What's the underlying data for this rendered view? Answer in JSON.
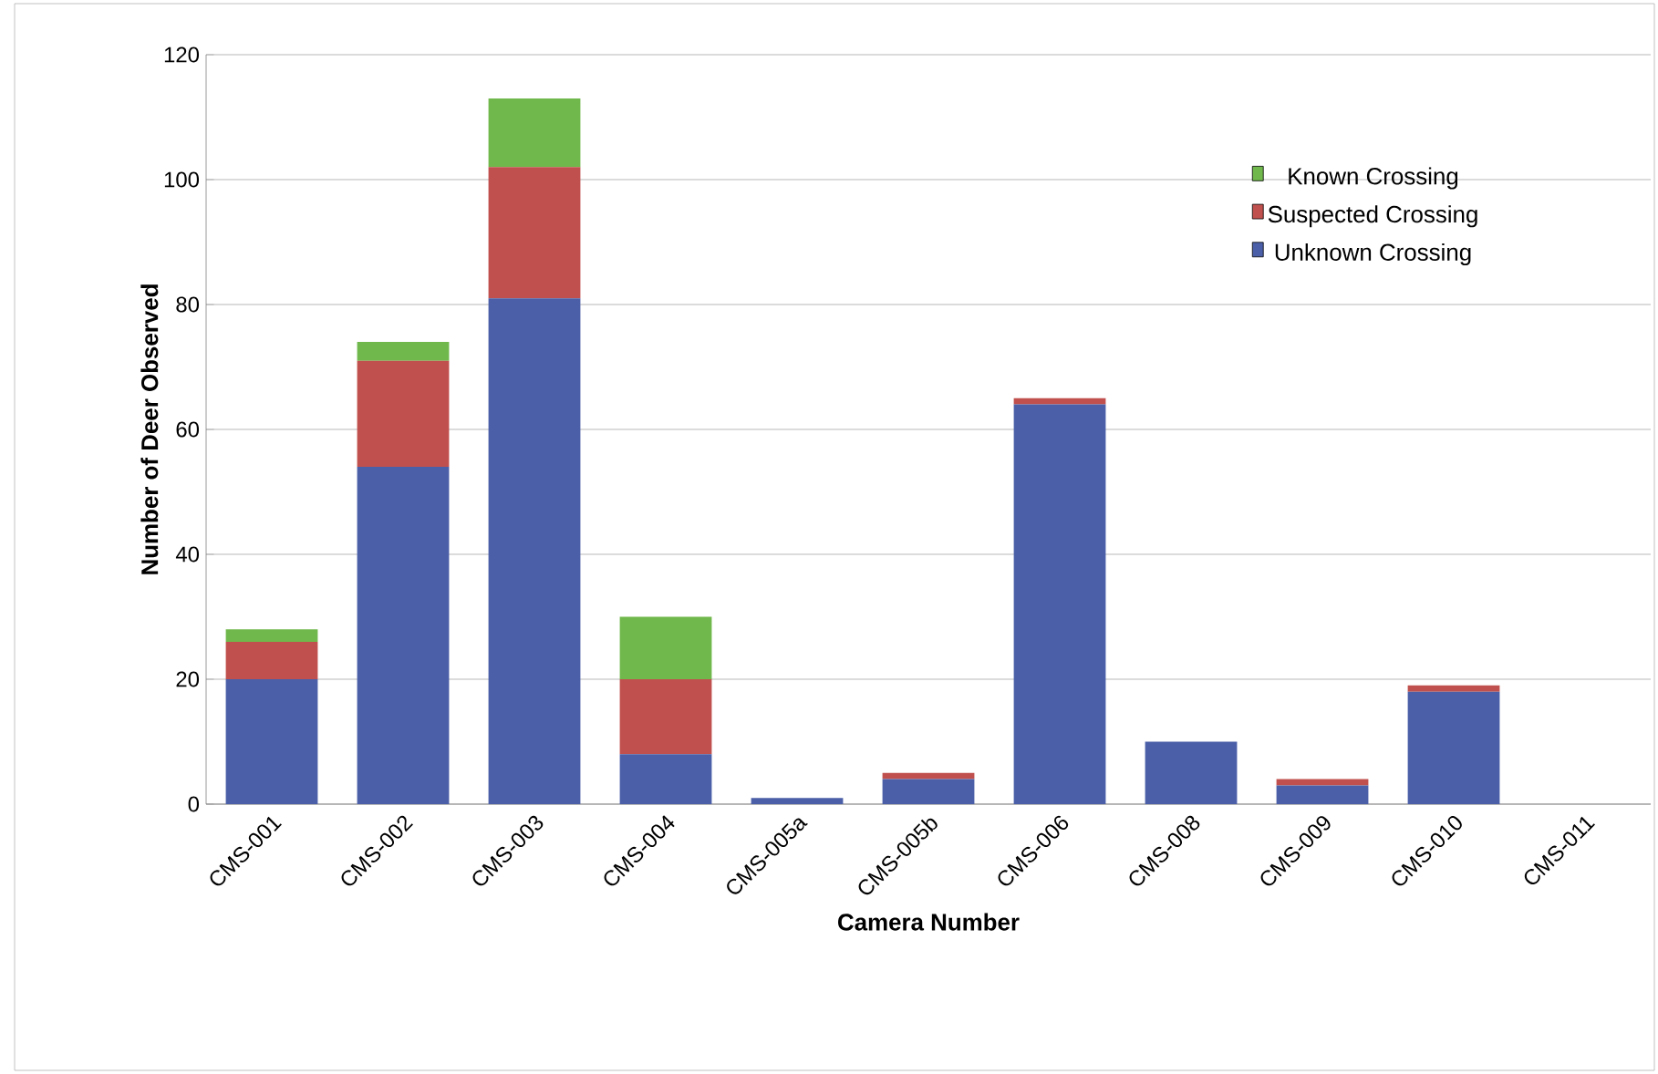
{
  "chart_data": {
    "type": "bar",
    "stacked": true,
    "xlabel": "Camera Number",
    "ylabel": "Number of Deer Observed",
    "categories": [
      "CMS-001",
      "CMS-002",
      "CMS-003",
      "CMS-004",
      "CMS-005a",
      "CMS-005b",
      "CMS-006",
      "CMS-008",
      "CMS-009",
      "CMS-010",
      "CMS-011"
    ],
    "series": [
      {
        "name": "Unknown Crossing",
        "color": "#4a5fa8",
        "values": [
          20,
          54,
          81,
          8,
          1,
          4,
          64,
          10,
          3,
          18,
          0
        ]
      },
      {
        "name": "Suspected Crossing",
        "color": "#c0504d",
        "values": [
          6,
          17,
          21,
          12,
          0,
          1,
          1,
          0,
          1,
          1,
          0
        ]
      },
      {
        "name": "Known Crossing",
        "color": "#70b84c",
        "values": [
          2,
          3,
          11,
          10,
          0,
          0,
          0,
          0,
          0,
          0,
          0
        ]
      }
    ],
    "ylim": [
      0,
      120
    ],
    "yticks": [
      0,
      20,
      40,
      60,
      80,
      100,
      120
    ],
    "grid": "y",
    "legend": "top right"
  }
}
